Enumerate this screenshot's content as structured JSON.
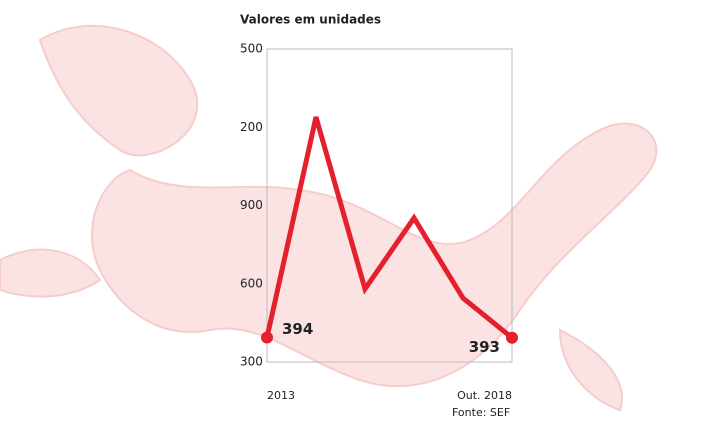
{
  "chart_data": {
    "type": "line",
    "title": "Valores em unidades",
    "source": "Fonte: SEF",
    "categories": [
      "2013",
      null,
      null,
      null,
      null,
      "Out. 2018"
    ],
    "series": [
      {
        "name": null,
        "color": "#e3202b",
        "values": [
          394,
          1239,
          580,
          852,
          545,
          393
        ],
        "value_labels": [
          "394",
          null,
          null,
          null,
          null,
          "393"
        ]
      }
    ],
    "ylim": [
      300,
      1500
    ],
    "yticks": [
      300,
      600,
      900,
      {
        "value": 1200,
        "label": "200"
      },
      {
        "value": 1500,
        "label": "500"
      }
    ]
  }
}
